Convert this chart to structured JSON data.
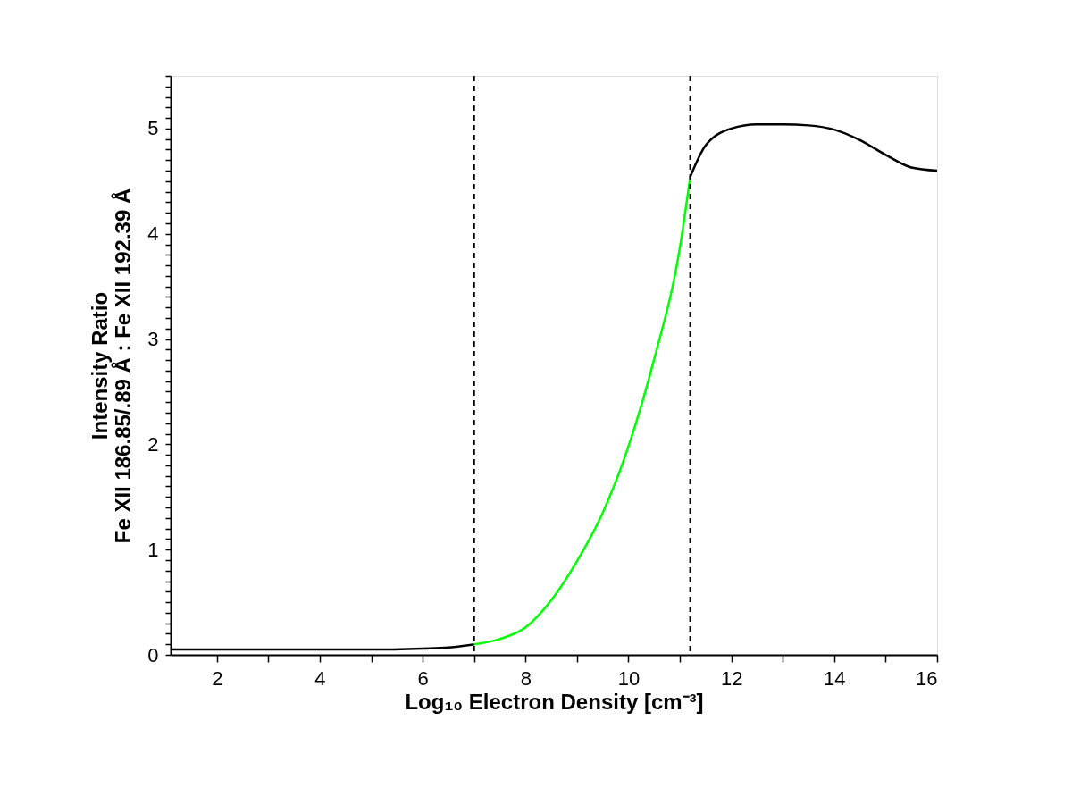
{
  "chart_data": {
    "type": "line",
    "xlabel": "Log₁₀ Electron Density [cm⁻³]",
    "ylabel": "Intensity Ratio\nFe XII 186.85/.89 Å : Fe XII 192.39 Å",
    "xlim": [
      1.1,
      16
    ],
    "ylim": [
      0,
      5.5
    ],
    "xticks": [
      2,
      {
        "value": 3,
        "label": null
      },
      4,
      {
        "value": 5,
        "label": null
      },
      6,
      {
        "value": 7,
        "label": null
      },
      8,
      {
        "value": 9,
        "label": null
      },
      10,
      {
        "value": 11,
        "label": null
      },
      12,
      {
        "value": 13,
        "label": null
      },
      14,
      {
        "value": 15,
        "label": null
      },
      16
    ],
    "yticks": [
      0,
      {
        "value": 0.1,
        "label": null
      },
      {
        "value": 0.2,
        "label": null
      },
      {
        "value": 0.3,
        "label": null
      },
      {
        "value": 0.4,
        "label": null
      },
      {
        "value": 0.5,
        "label": null
      },
      {
        "value": 0.6,
        "label": null
      },
      {
        "value": 0.7,
        "label": null
      },
      {
        "value": 0.8,
        "label": null
      },
      {
        "value": 0.9,
        "label": null
      },
      1,
      {
        "value": 1.1,
        "label": null
      },
      {
        "value": 1.2,
        "label": null
      },
      {
        "value": 1.3,
        "label": null
      },
      {
        "value": 1.4,
        "label": null
      },
      {
        "value": 1.5,
        "label": null
      },
      {
        "value": 1.6,
        "label": null
      },
      {
        "value": 1.7,
        "label": null
      },
      {
        "value": 1.8,
        "label": null
      },
      {
        "value": 1.9,
        "label": null
      },
      2,
      {
        "value": 2.1,
        "label": null
      },
      {
        "value": 2.2,
        "label": null
      },
      {
        "value": 2.3,
        "label": null
      },
      {
        "value": 2.4,
        "label": null
      },
      {
        "value": 2.5,
        "label": null
      },
      {
        "value": 2.6,
        "label": null
      },
      {
        "value": 2.7,
        "label": null
      },
      {
        "value": 2.8,
        "label": null
      },
      {
        "value": 2.9,
        "label": null
      },
      3,
      {
        "value": 3.1,
        "label": null
      },
      {
        "value": 3.2,
        "label": null
      },
      {
        "value": 3.3,
        "label": null
      },
      {
        "value": 3.4,
        "label": null
      },
      {
        "value": 3.5,
        "label": null
      },
      {
        "value": 3.6,
        "label": null
      },
      {
        "value": 3.7,
        "label": null
      },
      {
        "value": 3.8,
        "label": null
      },
      {
        "value": 3.9,
        "label": null
      },
      4,
      {
        "value": 4.1,
        "label": null
      },
      {
        "value": 4.2,
        "label": null
      },
      {
        "value": 4.3,
        "label": null
      },
      {
        "value": 4.4,
        "label": null
      },
      {
        "value": 4.5,
        "label": null
      },
      {
        "value": 4.6,
        "label": null
      },
      {
        "value": 4.7,
        "label": null
      },
      {
        "value": 4.8,
        "label": null
      },
      {
        "value": 4.9,
        "label": null
      },
      5,
      {
        "value": 5.1,
        "label": null
      },
      {
        "value": 5.2,
        "label": null
      },
      {
        "value": 5.3,
        "label": null
      },
      {
        "value": 5.4,
        "label": null
      },
      {
        "value": 5.5,
        "label": null
      }
    ],
    "grid": false,
    "marker": "none",
    "line_style": "solid",
    "series": [
      {
        "color": "#000000",
        "x": [
          1.1,
          2,
          3,
          4,
          5,
          6,
          6.5,
          7,
          9,
          11.2,
          11.5,
          12,
          12.5,
          13,
          13.5,
          14,
          14.5,
          15,
          15.5,
          16
        ],
        "values": [
          0.05,
          0.05,
          0.05,
          0.05,
          0.05,
          0.06,
          0.07,
          0.1,
          null,
          4.54,
          4.84,
          5.0,
          5.04,
          5.04,
          5.03,
          4.99,
          4.89,
          4.75,
          4.63,
          4.6
        ]
      },
      {
        "color": "#00ff00",
        "x": [
          7,
          7.5,
          8,
          8.5,
          9,
          9.5,
          10,
          10.5,
          11,
          11.2
        ],
        "values": [
          0.1,
          0.15,
          0.26,
          0.52,
          0.89,
          1.35,
          1.98,
          2.81,
          3.87,
          4.54
        ]
      }
    ],
    "ref_lines": [
      {
        "axis": "x",
        "value": 7,
        "color": "#000000",
        "line_style": "dashed"
      },
      {
        "axis": "x",
        "value": 11.2,
        "color": "#000000",
        "line_style": "dashed"
      }
    ]
  }
}
